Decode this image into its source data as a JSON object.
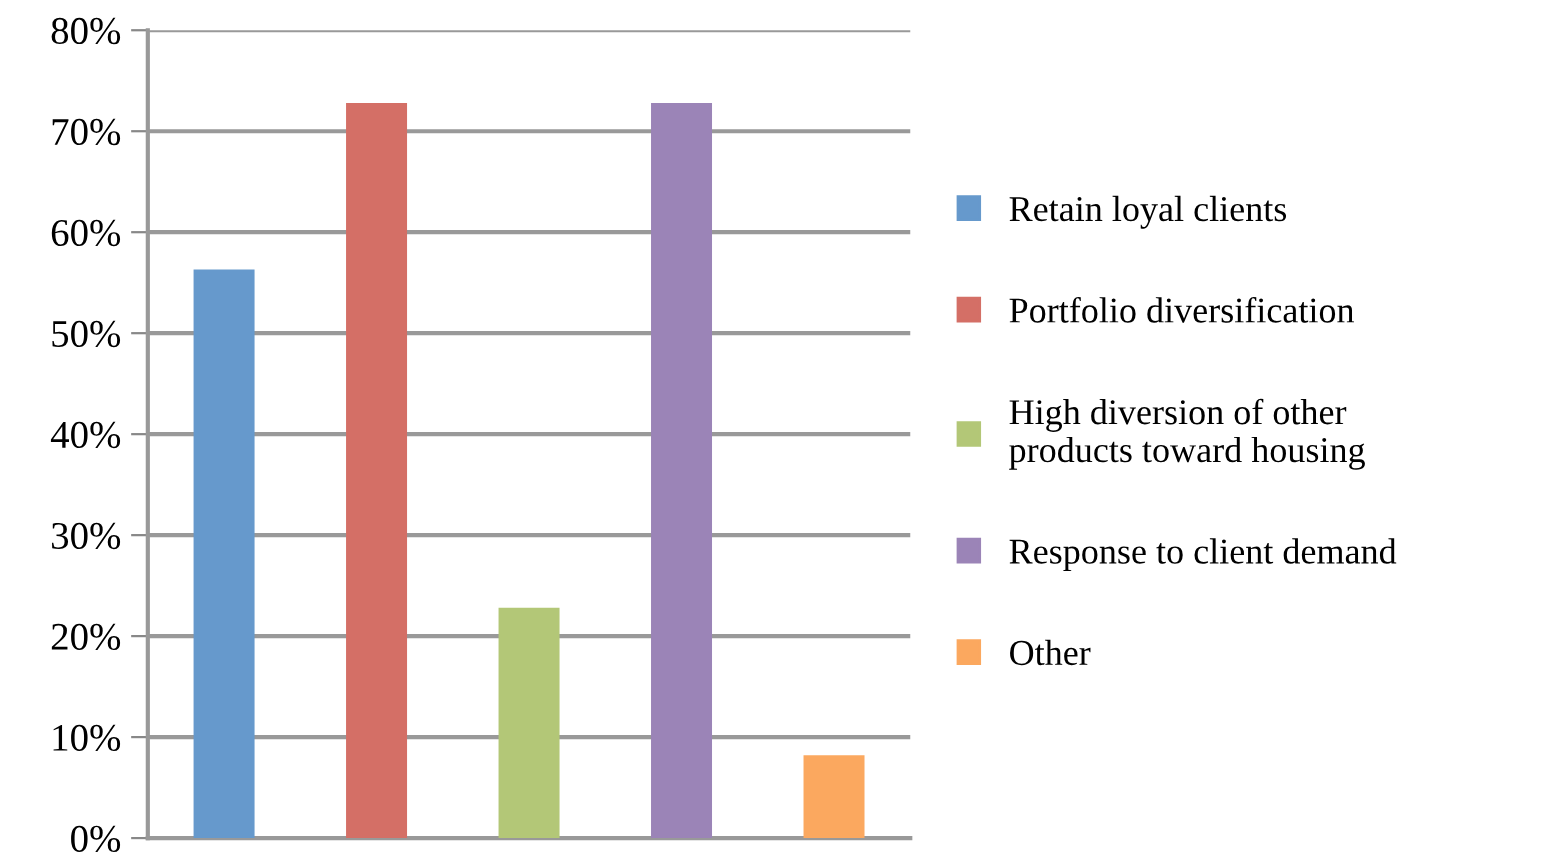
{
  "chart_data": {
    "type": "bar",
    "categories": [
      null,
      null,
      null,
      null,
      null
    ],
    "series": [
      {
        "name": "Retain loyal clients",
        "color": "#6699cc",
        "values": [
          56.3,
          null,
          null,
          null,
          null
        ]
      },
      {
        "name": "Portfolio diversification",
        "color": "#d46f66",
        "values": [
          null,
          72.8,
          null,
          null,
          null
        ]
      },
      {
        "name": "High diversion of other\nproducts toward housing",
        "color": "#b3c777",
        "values": [
          null,
          null,
          22.8,
          null,
          null
        ]
      },
      {
        "name": "Response to client demand",
        "color": "#9b84b7",
        "values": [
          null,
          null,
          null,
          72.8,
          null
        ]
      },
      {
        "name": "Other",
        "color": "#fba85f",
        "values": [
          null,
          null,
          null,
          null,
          8.2
        ]
      }
    ],
    "ylim": [
      0,
      80
    ],
    "yticks": [
      {
        "value": 0,
        "label": "0%"
      },
      {
        "value": 10,
        "label": "10%"
      },
      {
        "value": 20,
        "label": "20%"
      },
      {
        "value": 30,
        "label": "30%"
      },
      {
        "value": 40,
        "label": "40%"
      },
      {
        "value": 50,
        "label": "50%"
      },
      {
        "value": 60,
        "label": "60%"
      },
      {
        "value": 70,
        "label": "70%"
      },
      {
        "value": 80,
        "label": "80%"
      }
    ],
    "grid": "y",
    "legend": "right"
  }
}
